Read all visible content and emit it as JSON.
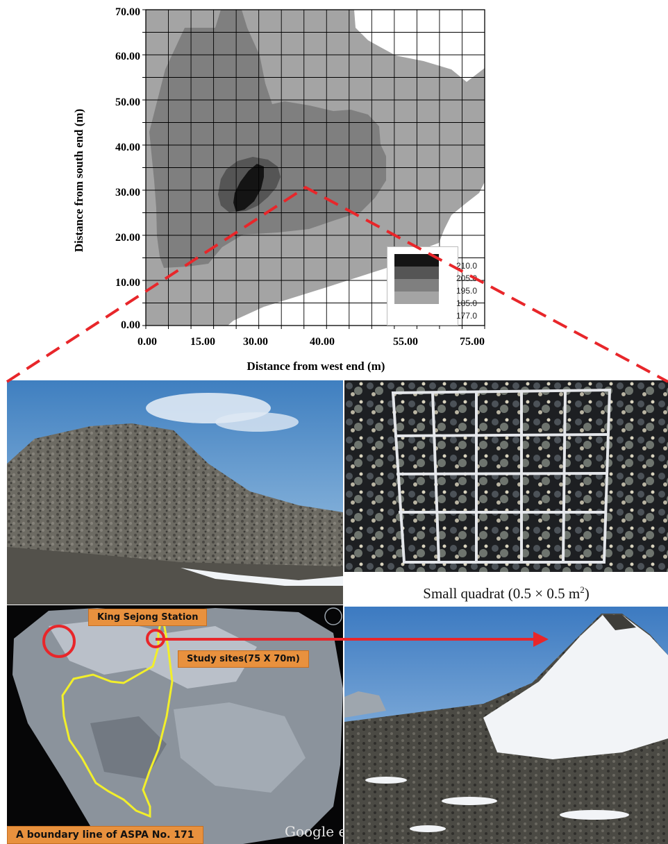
{
  "chart_data": {
    "type": "heatmap",
    "xlabel": "Distance from west end (m)",
    "ylabel": "Distance from south end (m)",
    "x_ticks": [
      "0.00",
      "15.00",
      "30.00",
      "40.00",
      "55.00",
      "75.00"
    ],
    "y_ticks": [
      "0.00",
      "10.00",
      "20.00",
      "30.00",
      "40.00",
      "50.00",
      "60.00",
      "70.00"
    ],
    "xlim": [
      0,
      75
    ],
    "ylim": [
      0,
      70
    ],
    "grid": true,
    "legend_position": "bottom-right",
    "legend_levels": [
      "210.0",
      "205.0",
      "195.0",
      "185.0",
      "177.0"
    ],
    "level_colors": [
      "#141414",
      "#555555",
      "#7f7f7f",
      "#a4a4a4",
      "#ffffff"
    ]
  },
  "photos": {
    "quadrat_caption": "Small quadrat (0.5 × 0.5 m",
    "quadrat_caption_sup": "2",
    "quadrat_caption_end": ")"
  },
  "map": {
    "callout_station": "King Sejong Station",
    "callout_study": "Study sites(75 X 70m)",
    "callout_boundary": "A boundary line of ASPA No. 171",
    "watermark": "Google eart"
  },
  "colors": {
    "highlight_red": "#e8262a",
    "boundary_yellow": "#f2ef2a",
    "callout_orange": "#e8913e"
  }
}
